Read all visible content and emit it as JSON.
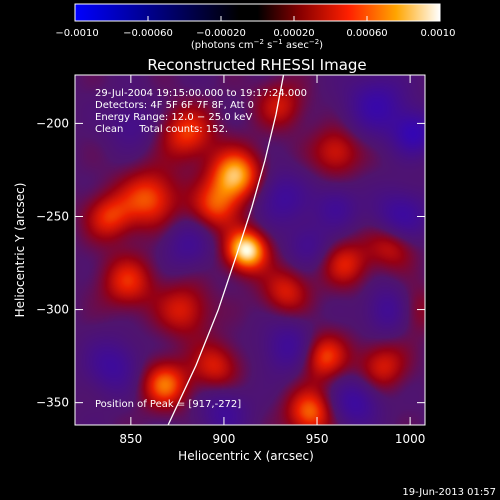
{
  "chart_data": {
    "type": "heatmap",
    "title": "Reconstructed RHESSI Image",
    "xlabel": "Heliocentric X (arcsec)",
    "ylabel": "Heliocentric Y (arcsec)",
    "xlim": [
      820,
      1008
    ],
    "ylim": [
      -362,
      -174
    ],
    "x_ticks": [
      850,
      900,
      950,
      1000
    ],
    "y_ticks": [
      -200,
      -250,
      -300,
      -350
    ],
    "colorbar": {
      "range": [
        -0.001,
        0.001
      ],
      "ticks": [
        {
          "value": -0.001,
          "label": "−0.0010"
        },
        {
          "value": -0.0006,
          "label": "−0.00060"
        },
        {
          "value": -0.0002,
          "label": "−0.00020"
        },
        {
          "value": 0.0002,
          "label": "0.00020"
        },
        {
          "value": 0.0006,
          "label": "0.00060"
        },
        {
          "value": 0.001,
          "label": "0.0010"
        }
      ],
      "label": "(photons cm<sup>−2</sup> s<sup>−1</sup> asec<sup>−2</sup>)"
    },
    "annotations": [
      "29-Jul-2004 19:15:00.000 to 19:17:24.000",
      "Detectors: 4F 5F 6F 7F 8F, Att 0",
      "Energy Range: 12.0 − 25.0 keV",
      "Clean     Total counts: 152."
    ],
    "peak_label": "Position of Peak = [917,-272]",
    "peak": [
      917,
      -272
    ],
    "limb_curve": [
      [
        870,
        -362
      ],
      [
        885,
        -330
      ],
      [
        897,
        -300
      ],
      [
        907,
        -270
      ],
      [
        915,
        -245
      ],
      [
        922,
        -220
      ],
      [
        928,
        -195
      ],
      [
        932,
        -174
      ]
    ],
    "sources": [
      {
        "x": 912,
        "y": -268,
        "a": 1.0,
        "s": 8
      },
      {
        "x": 906,
        "y": -228,
        "a": 0.85,
        "s": 10
      },
      {
        "x": 880,
        "y": -205,
        "a": 0.55,
        "s": 10
      },
      {
        "x": 860,
        "y": -240,
        "a": 0.6,
        "s": 11
      },
      {
        "x": 838,
        "y": -250,
        "a": 0.5,
        "s": 9
      },
      {
        "x": 895,
        "y": -245,
        "a": 0.5,
        "s": 9
      },
      {
        "x": 848,
        "y": -285,
        "a": 0.5,
        "s": 10
      },
      {
        "x": 878,
        "y": -300,
        "a": 0.45,
        "s": 10
      },
      {
        "x": 868,
        "y": -340,
        "a": 0.65,
        "s": 9
      },
      {
        "x": 895,
        "y": -330,
        "a": 0.45,
        "s": 9
      },
      {
        "x": 933,
        "y": -290,
        "a": 0.45,
        "s": 9
      },
      {
        "x": 953,
        "y": -325,
        "a": 0.6,
        "s": 9
      },
      {
        "x": 946,
        "y": -355,
        "a": 0.65,
        "s": 9
      },
      {
        "x": 965,
        "y": -275,
        "a": 0.45,
        "s": 9
      },
      {
        "x": 990,
        "y": -265,
        "a": 0.45,
        "s": 9
      },
      {
        "x": 985,
        "y": -330,
        "a": 0.45,
        "s": 9
      },
      {
        "x": 960,
        "y": -215,
        "a": 0.45,
        "s": 9
      },
      {
        "x": 930,
        "y": -190,
        "a": 0.4,
        "s": 9
      },
      {
        "x": 1000,
        "y": -300,
        "a": 0.4,
        "s": 9
      },
      {
        "x": 982,
        "y": -190,
        "a": -0.55,
        "s": 11
      },
      {
        "x": 1002,
        "y": -205,
        "a": -0.65,
        "s": 8
      },
      {
        "x": 995,
        "y": -250,
        "a": -0.55,
        "s": 10
      },
      {
        "x": 990,
        "y": -300,
        "a": -0.55,
        "s": 9
      },
      {
        "x": 970,
        "y": -350,
        "a": -0.5,
        "s": 9
      },
      {
        "x": 935,
        "y": -320,
        "a": -0.45,
        "s": 10
      },
      {
        "x": 930,
        "y": -240,
        "a": -0.45,
        "s": 10
      },
      {
        "x": 880,
        "y": -265,
        "a": -0.35,
        "s": 9
      },
      {
        "x": 840,
        "y": -330,
        "a": -0.45,
        "s": 10
      },
      {
        "x": 900,
        "y": -355,
        "a": -0.4,
        "s": 9
      },
      {
        "x": 945,
        "y": -265,
        "a": -0.35,
        "s": 8
      },
      {
        "x": 850,
        "y": -200,
        "a": -0.3,
        "s": 9
      },
      {
        "x": 960,
        "y": -245,
        "a": -0.4,
        "s": 8
      }
    ]
  },
  "footer": {
    "date": "19-Jun-2013 01:57"
  }
}
